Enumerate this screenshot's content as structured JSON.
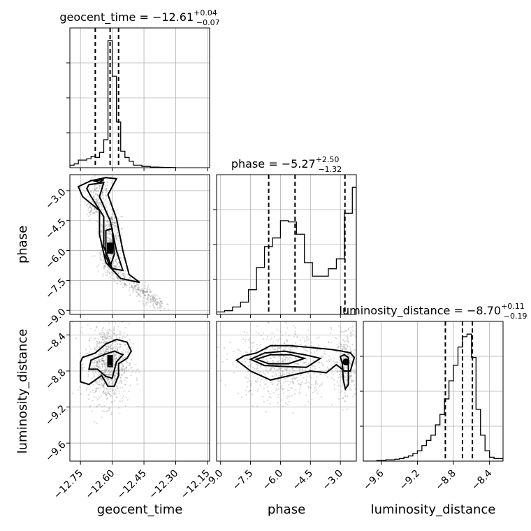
{
  "chart_data": {
    "type": "corner",
    "parameters": [
      "geocent_time",
      "phase",
      "luminosity_distance"
    ],
    "axis_labels": [
      "geocent_time",
      "phase",
      "luminosity_distance"
    ],
    "ranges": {
      "geocent_time": [
        -12.8,
        -12.14
      ],
      "phase": [
        -9.2,
        -2.2
      ],
      "luminosity_distance": [
        -9.8,
        -8.25
      ]
    },
    "ticks": {
      "geocent_time": [
        -12.75,
        -12.6,
        -12.45,
        -12.3,
        -12.15
      ],
      "phase": [
        -9.0,
        -7.5,
        -6.0,
        -4.5,
        -3.0
      ],
      "luminosity_distance": [
        -9.6,
        -9.2,
        -8.8,
        -8.4
      ]
    },
    "tick_labels": {
      "geocent_time": [
        "−12.75",
        "−12.60",
        "−12.45",
        "−12.30",
        "−12.15"
      ],
      "phase": [
        "−9.0",
        "−7.5",
        "−6.0",
        "−4.5",
        "−3.0"
      ],
      "luminosity_distance": [
        "−9.6",
        "−9.2",
        "−8.8",
        "−8.4"
      ]
    },
    "titles": [
      {
        "param": "geocent_time",
        "label": "geocent_time = ",
        "median": "−12.61",
        "plus": "+0.04",
        "minus": "−0.07"
      },
      {
        "param": "phase",
        "label": "phase = ",
        "median": "−5.27",
        "plus": "+2.50",
        "minus": "−1.32"
      },
      {
        "param": "luminosity_distance",
        "label": "luminosity_distance = ",
        "median": "−8.70",
        "plus": "+0.11",
        "minus": "−0.19"
      }
    ],
    "quantiles": {
      "geocent_time": [
        -12.68,
        -12.61,
        -12.57
      ],
      "phase": [
        -6.59,
        -5.27,
        -2.77
      ],
      "luminosity_distance": [
        -8.89,
        -8.7,
        -8.59
      ]
    },
    "histograms": {
      "geocent_time": {
        "edges": [
          -12.8,
          -12.78,
          -12.76,
          -12.74,
          -12.72,
          -12.7,
          -12.68,
          -12.66,
          -12.64,
          -12.62,
          -12.6,
          -12.58,
          -12.56,
          -12.54,
          -12.52,
          -12.5,
          -12.48,
          -12.46,
          -12.44,
          -12.42,
          -12.4,
          -12.38,
          -12.36,
          -12.34,
          -12.32,
          -12.3
        ],
        "counts": [
          2,
          3,
          6,
          6,
          7,
          9,
          8,
          12,
          22,
          100,
          72,
          36,
          13,
          8,
          5,
          2,
          2,
          1,
          1,
          0.5,
          0.5,
          0.3,
          0.2,
          0.2,
          0.1
        ]
      },
      "phase": {
        "edges": [
          -9.2,
          -8.8,
          -8.4,
          -8.0,
          -7.6,
          -7.2,
          -6.8,
          -6.4,
          -6.0,
          -5.6,
          -5.2,
          -4.8,
          -4.4,
          -4.0,
          -3.6,
          -3.2,
          -2.8,
          -2.4,
          -2.2
        ],
        "counts": [
          2,
          3,
          6,
          10,
          20,
          38,
          55,
          62,
          76,
          75,
          65,
          42,
          31,
          31,
          37,
          45,
          82,
          103
        ]
      },
      "luminosity_distance": {
        "edges": [
          -9.8,
          -9.75,
          -9.7,
          -9.65,
          -9.6,
          -9.55,
          -9.5,
          -9.45,
          -9.4,
          -9.35,
          -9.3,
          -9.25,
          -9.2,
          -9.15,
          -9.1,
          -9.05,
          -9.0,
          -8.95,
          -8.9,
          -8.85,
          -8.8,
          -8.75,
          -8.7,
          -8.65,
          -8.6,
          -8.55,
          -8.5,
          -8.45,
          -8.4,
          -8.35,
          -8.3,
          -8.25
        ],
        "counts": [
          0,
          0,
          0,
          0.5,
          0.5,
          1,
          1,
          1.5,
          2,
          3,
          4,
          6,
          8,
          12,
          16,
          20,
          28,
          36,
          48,
          62,
          74,
          88,
          96,
          98,
          80,
          40,
          20,
          8,
          3,
          2,
          2
        ]
      }
    },
    "contours": {
      "geocent_time__phase": [
        [
          [
            -12.7,
            -2.5
          ],
          [
            -12.63,
            -2.35
          ],
          [
            -12.58,
            -2.4
          ],
          [
            -12.62,
            -3.2
          ],
          [
            -12.58,
            -4.4
          ],
          [
            -12.55,
            -6.0
          ],
          [
            -12.52,
            -7.2
          ],
          [
            -12.47,
            -7.6
          ],
          [
            -12.56,
            -7.4
          ],
          [
            -12.63,
            -6.6
          ],
          [
            -12.66,
            -5.2
          ],
          [
            -12.66,
            -4.0
          ],
          [
            -12.74,
            -3.3
          ],
          [
            -12.76,
            -2.8
          ],
          [
            -12.7,
            -2.5
          ]
        ],
        [
          [
            -12.71,
            -2.7
          ],
          [
            -12.64,
            -2.6
          ],
          [
            -12.66,
            -3.3
          ],
          [
            -12.61,
            -4.5
          ],
          [
            -12.58,
            -6.0
          ],
          [
            -12.55,
            -7.0
          ],
          [
            -12.6,
            -6.9
          ],
          [
            -12.64,
            -5.8
          ],
          [
            -12.64,
            -4.3
          ],
          [
            -12.7,
            -3.3
          ],
          [
            -12.72,
            -2.9
          ],
          [
            -12.71,
            -2.7
          ]
        ],
        [
          [
            -12.63,
            -5.0
          ],
          [
            -12.6,
            -4.9
          ],
          [
            -12.59,
            -6.2
          ],
          [
            -12.61,
            -6.8
          ],
          [
            -12.63,
            -6.3
          ],
          [
            -12.63,
            -5.0
          ]
        ],
        [
          [
            -12.69,
            -2.5
          ],
          [
            -12.64,
            -2.45
          ],
          [
            -12.66,
            -2.58
          ],
          [
            -12.69,
            -2.5
          ]
        ]
      ],
      "geocent_time__luminosity_distance": [
        [
          [
            -12.74,
            -8.65
          ],
          [
            -12.68,
            -8.6
          ],
          [
            -12.63,
            -8.5
          ],
          [
            -12.58,
            -8.45
          ],
          [
            -12.53,
            -8.48
          ],
          [
            -12.51,
            -8.58
          ],
          [
            -12.53,
            -8.66
          ],
          [
            -12.57,
            -8.72
          ],
          [
            -12.57,
            -8.85
          ],
          [
            -12.59,
            -8.97
          ],
          [
            -12.62,
            -8.97
          ],
          [
            -12.65,
            -8.85
          ],
          [
            -12.71,
            -8.95
          ],
          [
            -12.75,
            -8.92
          ],
          [
            -12.75,
            -8.7
          ],
          [
            -12.74,
            -8.65
          ]
        ],
        [
          [
            -12.7,
            -8.68
          ],
          [
            -12.64,
            -8.62
          ],
          [
            -12.59,
            -8.58
          ],
          [
            -12.55,
            -8.62
          ],
          [
            -12.58,
            -8.7
          ],
          [
            -12.6,
            -8.88
          ],
          [
            -12.63,
            -8.86
          ],
          [
            -12.67,
            -8.78
          ],
          [
            -12.71,
            -8.78
          ],
          [
            -12.7,
            -8.68
          ]
        ],
        [
          [
            -12.62,
            -8.63
          ],
          [
            -12.6,
            -8.63
          ],
          [
            -12.6,
            -8.75
          ],
          [
            -12.62,
            -8.75
          ],
          [
            -12.62,
            -8.63
          ]
        ]
      ],
      "phase__luminosity_distance": [
        [
          [
            -8.2,
            -8.68
          ],
          [
            -7.8,
            -8.63
          ],
          [
            -7.2,
            -8.6
          ],
          [
            -6.5,
            -8.52
          ],
          [
            -5.5,
            -8.52
          ],
          [
            -4.5,
            -8.54
          ],
          [
            -3.5,
            -8.56
          ],
          [
            -2.9,
            -8.58
          ],
          [
            -2.5,
            -8.6
          ],
          [
            -2.3,
            -8.65
          ],
          [
            -2.5,
            -8.8
          ],
          [
            -2.8,
            -8.8
          ],
          [
            -3.2,
            -8.73
          ],
          [
            -3.7,
            -8.82
          ],
          [
            -4.5,
            -8.8
          ],
          [
            -5.5,
            -8.85
          ],
          [
            -6.5,
            -8.9
          ],
          [
            -7.5,
            -8.8
          ],
          [
            -8.2,
            -8.68
          ]
        ],
        [
          [
            -7.5,
            -8.67
          ],
          [
            -6.8,
            -8.6
          ],
          [
            -5.8,
            -8.58
          ],
          [
            -4.8,
            -8.62
          ],
          [
            -4.0,
            -8.66
          ],
          [
            -4.7,
            -8.76
          ],
          [
            -5.8,
            -8.75
          ],
          [
            -6.8,
            -8.74
          ],
          [
            -7.5,
            -8.67
          ]
        ],
        [
          [
            -7.2,
            -8.67
          ],
          [
            -6.5,
            -8.62
          ],
          [
            -5.5,
            -8.62
          ],
          [
            -4.8,
            -8.66
          ],
          [
            -5.6,
            -8.72
          ],
          [
            -6.6,
            -8.72
          ],
          [
            -7.2,
            -8.67
          ]
        ],
        [
          [
            -3.0,
            -8.64
          ],
          [
            -2.8,
            -8.62
          ],
          [
            -2.6,
            -8.65
          ],
          [
            -2.6,
            -8.95
          ],
          [
            -2.75,
            -9.0
          ],
          [
            -2.85,
            -8.9
          ],
          [
            -2.9,
            -8.72
          ],
          [
            -3.0,
            -8.64
          ]
        ]
      ]
    }
  }
}
